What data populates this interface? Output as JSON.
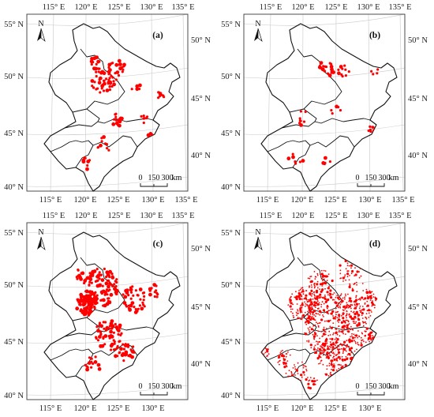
{
  "figure": {
    "panels": [
      {
        "label": "(a)",
        "lon_labels_top": [
          "115° E",
          "120° E",
          "125° E",
          "130° E",
          "135° E"
        ],
        "lon_labels_bottom": [
          "115° E",
          "120° E",
          "125° E",
          "130° E",
          "135° E"
        ],
        "lat_labels_left": [
          "55° N",
          "50° N",
          "45° N",
          "40° N"
        ],
        "lat_labels_right": [
          "50° N",
          "45° N",
          "40° N"
        ],
        "north_label": "N",
        "scale": {
          "ticks": [
            "0",
            "150",
            "300"
          ],
          "unit": "km"
        },
        "points_color": "#ff0000",
        "density": "medium"
      },
      {
        "label": "(b)",
        "lon_labels_top": [
          "115° E",
          "120° E",
          "125° E",
          "130° E",
          "135° E"
        ],
        "lon_labels_bottom": [
          "115° E",
          "120° E",
          "125° E",
          "130° E",
          "135° E"
        ],
        "lat_labels_left": [
          "55° N",
          "50° N",
          "45° N",
          "40° N"
        ],
        "lat_labels_right": [
          "50° N",
          "45° N",
          "40° N"
        ],
        "north_label": "N",
        "scale": {
          "ticks": [
            "0",
            "150",
            "300"
          ],
          "unit": "km"
        },
        "points_color": "#ff0000",
        "density": "low"
      },
      {
        "label": "(c)",
        "lon_labels_top": [
          "115° E",
          "120° E",
          "125° E",
          "130° E",
          "135° E"
        ],
        "lon_labels_bottom": [
          "115° E",
          "120° E",
          "125° E",
          "130° E"
        ],
        "lat_labels_left": [
          "55° N",
          "50° N",
          "45° N",
          "40° N"
        ],
        "lat_labels_right": [
          "50° N",
          "45° N",
          "40° N"
        ],
        "north_label": "N",
        "scale": {
          "ticks": [
            "0",
            "150",
            "300"
          ],
          "unit": "km"
        },
        "points_color": "#ff0000",
        "density": "high"
      },
      {
        "label": "(d)",
        "lon_labels_top": [
          "115° E",
          "120° E",
          "125° E",
          "130° E",
          "135° E"
        ],
        "lon_labels_bottom": [
          "115° E",
          "120° E",
          "125° E",
          "130° E"
        ],
        "lat_labels_left": [
          "55° N",
          "50° N",
          "45° N",
          "40° N"
        ],
        "lat_labels_right": [
          "50° N",
          "45° N",
          "40° N"
        ],
        "north_label": "N",
        "scale": {
          "ticks": [
            "0",
            "150",
            "300"
          ],
          "unit": "km"
        },
        "points_color": "#ff0000",
        "density": "very-high"
      }
    ]
  }
}
